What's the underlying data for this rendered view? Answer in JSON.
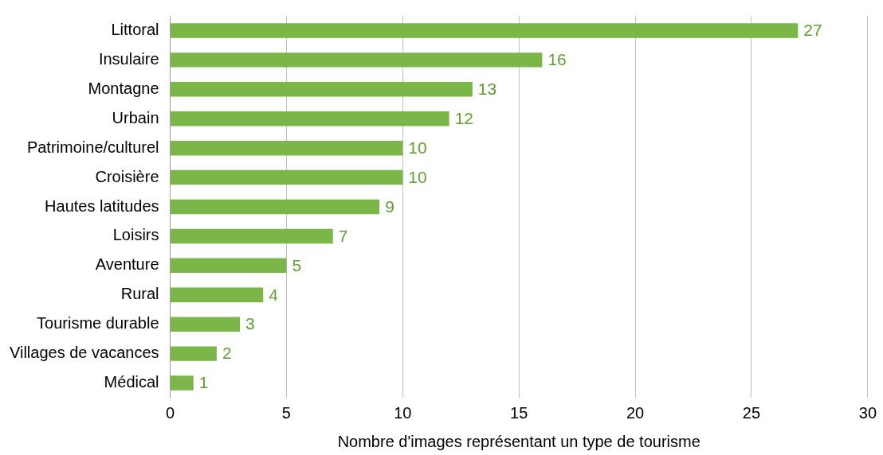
{
  "chart_data": {
    "type": "bar",
    "orientation": "horizontal",
    "xlabel": "Nombre d'images représentant un type de tourisme",
    "categories": [
      "Littoral",
      "Insulaire",
      "Montagne",
      "Urbain",
      "Patrimoine/culturel",
      "Croisière",
      "Hautes latitudes",
      "Loisirs",
      "Aventure",
      "Rural",
      "Tourisme durable",
      "Villages de vacances",
      "Médical"
    ],
    "values": [
      27,
      16,
      13,
      12,
      10,
      10,
      9,
      7,
      5,
      4,
      3,
      2,
      1
    ],
    "color": "#7ab648",
    "xlim": [
      0,
      30
    ],
    "xticks": [
      0,
      5,
      10,
      15,
      20,
      25,
      30
    ],
    "grid": "x",
    "legend": false,
    "data_labels": true
  }
}
